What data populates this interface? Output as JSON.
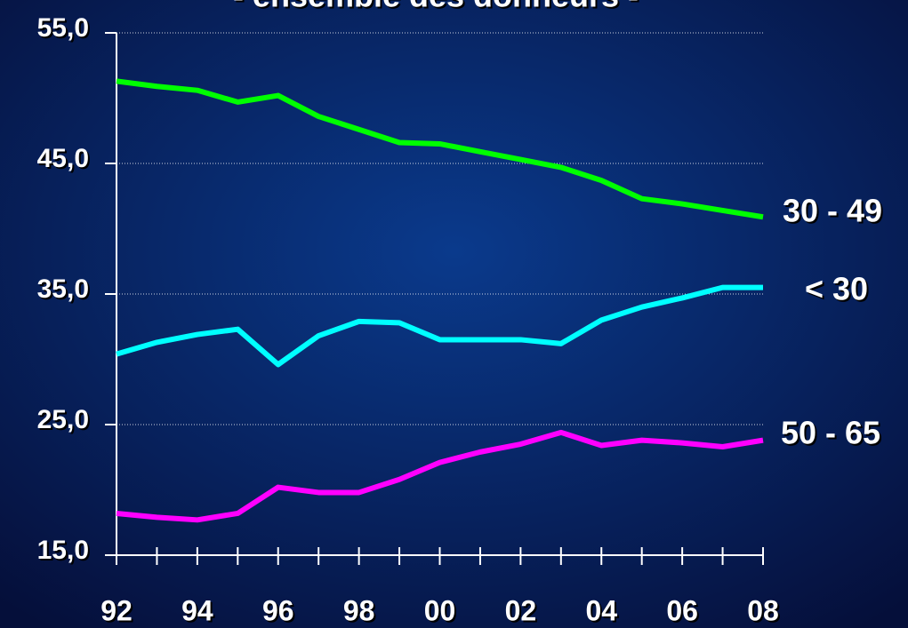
{
  "chart_data": {
    "type": "line",
    "title": "- ensemble des donneurs -",
    "categories": [
      "92",
      null,
      "94",
      null,
      "96",
      null,
      "98",
      null,
      "00",
      null,
      "02",
      null,
      "04",
      null,
      "06",
      null,
      "08"
    ],
    "series": [
      {
        "name": "30 - 49",
        "color": "#00ff00",
        "values": [
          51.3,
          50.9,
          50.6,
          49.7,
          50.2,
          48.6,
          47.6,
          46.6,
          46.5,
          45.9,
          45.3,
          44.7,
          43.7,
          42.3,
          41.9,
          41.4,
          40.9
        ]
      },
      {
        "name": "< 30",
        "color": "#00ffff",
        "values": [
          30.4,
          31.3,
          31.9,
          32.3,
          29.6,
          31.8,
          32.9,
          32.8,
          31.5,
          31.5,
          31.5,
          31.2,
          33.0,
          34.0,
          34.7,
          35.5,
          35.5
        ]
      },
      {
        "name": "50 - 65",
        "color": "#ff00ff",
        "values": [
          18.2,
          17.9,
          17.7,
          18.2,
          20.2,
          19.8,
          19.8,
          20.8,
          22.1,
          22.9,
          23.5,
          24.4,
          23.4,
          23.8,
          23.6,
          23.3,
          23.8
        ]
      }
    ],
    "ylim": [
      15,
      55
    ],
    "yticks": [
      {
        "value": 15,
        "label": "15,0"
      },
      {
        "value": 25,
        "label": "25,0"
      },
      {
        "value": 35,
        "label": "35,0"
      },
      {
        "value": 45,
        "label": "45,0"
      },
      {
        "value": 55,
        "label": "55,0"
      }
    ],
    "grid": true
  }
}
